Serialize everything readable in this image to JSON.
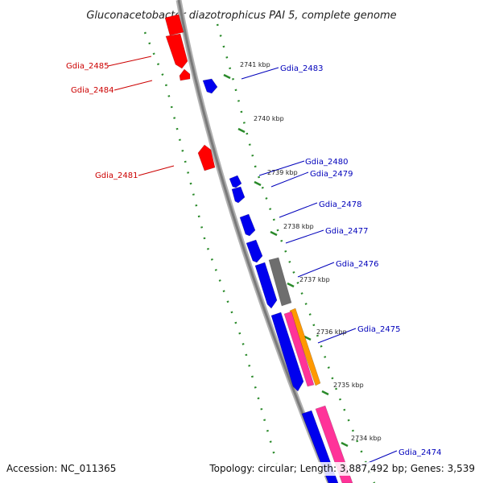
{
  "title": "Gluconacetobacter diazotrophicus PAI 5, complete genome",
  "footer": {
    "accession": "Accession: NC_011365",
    "summary": "Topology: circular; Length: 3,887,492 bp; Genes: 3,539"
  },
  "colors": {
    "reverse_strand": "#ff0000",
    "forward_strand": "#0000ee",
    "reverse_label": "#cc0000",
    "forward_label": "#0000bb",
    "backbone": "#8a8a8a",
    "tick_ring": "#2a8a2a",
    "dark_feature": "#6e6e6e",
    "pink_feature": "#ff3399",
    "orange_feature": "#ff9900"
  },
  "kbp_labels": [
    "2741 kbp",
    "2740 kbp",
    "2739 kbp",
    "2738 kbp",
    "2737 kbp",
    "2736 kbp",
    "2735 kbp",
    "2734 kbp"
  ],
  "reverse_genes": [
    "Gdia_2485",
    "Gdia_2484",
    "Gdia_2481"
  ],
  "forward_genes": [
    "Gdia_2483",
    "Gdia_2480",
    "Gdia_2479",
    "Gdia_2478",
    "Gdia_2477",
    "Gdia_2476",
    "Gdia_2475",
    "Gdia_2474"
  ]
}
